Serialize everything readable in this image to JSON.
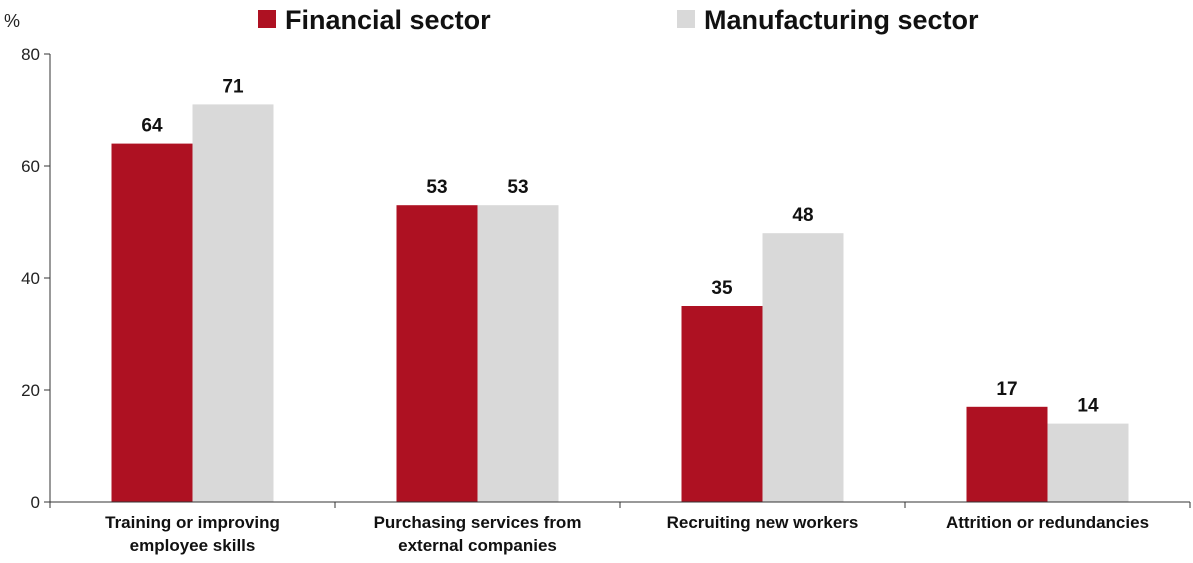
{
  "chart_data": {
    "type": "bar",
    "unit": "%",
    "categories": [
      [
        "Training or improving",
        "employee skills"
      ],
      [
        "Purchasing services from",
        "external companies"
      ],
      [
        "Recruiting new workers"
      ],
      [
        "Attrition or redundancies"
      ]
    ],
    "series": [
      {
        "name": "Financial sector",
        "values": [
          64,
          53,
          35,
          17
        ],
        "color": "#ae1122"
      },
      {
        "name": "Manufacturing sector",
        "values": [
          71,
          53,
          48,
          14
        ],
        "color": "#d9d9d9"
      }
    ],
    "ylim": [
      0,
      80
    ],
    "yticks": [
      "0",
      "20",
      "40",
      "60",
      "80"
    ],
    "grid": false,
    "legend_position": "top"
  }
}
